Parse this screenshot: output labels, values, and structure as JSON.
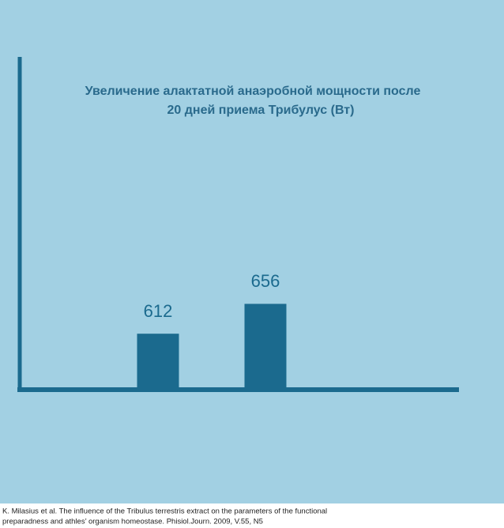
{
  "chart_data": {
    "type": "bar",
    "title": [
      "Увеличение алактатной анаэробной мощности после",
      "20 дней приема Трибулус (Вт)"
    ],
    "categories": [
      null,
      null
    ],
    "values": [
      612,
      656
    ],
    "color": "#1b6a8e",
    "ylim": [
      533,
      1020
    ],
    "source": [
      "K. Milasius et al. The influence of the Tribulus terrestris extract on the parameters of the functional",
      "preparadness and athles’ organism homeostase. Phisiol.Journ. 2009, V.55, N5"
    ]
  }
}
